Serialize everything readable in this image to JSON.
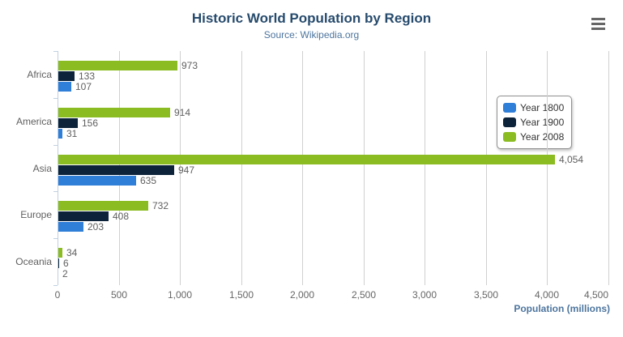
{
  "header": {
    "title": "Historic World Population by Region",
    "subtitle": "Source: Wikipedia.org",
    "menu_icon": "hamburger-icon"
  },
  "chart_data": {
    "type": "bar",
    "title": "Historic World Population by Region",
    "subtitle": "Source: Wikipedia.org",
    "categories": [
      "Africa",
      "America",
      "Asia",
      "Europe",
      "Oceania"
    ],
    "series": [
      {
        "name": "Year 1800",
        "color": "#2f7ed8",
        "values": [
          107,
          31,
          635,
          203,
          2
        ]
      },
      {
        "name": "Year 1900",
        "color": "#0d233a",
        "values": [
          133,
          156,
          947,
          408,
          6
        ]
      },
      {
        "name": "Year 2008",
        "color": "#8bbc21",
        "values": [
          973,
          914,
          4054,
          732,
          34
        ]
      }
    ],
    "bar_order_top_to_bottom": [
      "Year 2008",
      "Year 1900",
      "Year 1800"
    ],
    "data_labels": {
      "Africa": [
        "973",
        "133",
        "107"
      ],
      "America": [
        "914",
        "156",
        "31"
      ],
      "Asia": [
        "4,054",
        "947",
        "635"
      ],
      "Europe": [
        "732",
        "408",
        "203"
      ],
      "Oceania": [
        "34",
        "6",
        "2"
      ]
    },
    "xlabel": "Population (millions)",
    "ylabel": "",
    "xlim": [
      0,
      4500
    ],
    "x_tick_values": [
      0,
      500,
      1000,
      1500,
      2000,
      2500,
      3000,
      3500,
      4000,
      4500
    ],
    "x_tick_labels": [
      "0",
      "500",
      "1,000",
      "1,500",
      "2,000",
      "2,500",
      "3,000",
      "3,500",
      "4,000",
      "4,500"
    ],
    "grid": true,
    "legend_position": "right-inside",
    "legend_items": [
      "Year 1800",
      "Year 1900",
      "Year 2008"
    ]
  },
  "colors": {
    "title": "#274b6d",
    "subtitle": "#4d759e",
    "axis_title": "#4d759e",
    "axis_line": "#c0d0e0",
    "gridline": "#d0d0d0",
    "tick_label": "#666666",
    "category_label": "#606060",
    "data_label": "#606060",
    "legend_border": "#909090",
    "menu_icon": "#666666"
  }
}
